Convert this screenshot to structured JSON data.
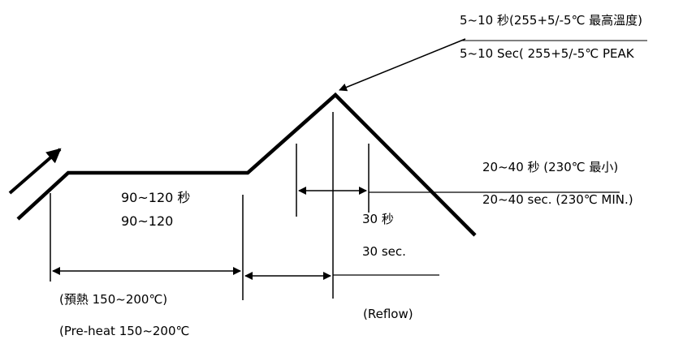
{
  "colors": {
    "line": "#000000",
    "background": "#ffffff"
  },
  "peak": {
    "line1": "5~10 秒(255+5/-5℃ 最高溫度)",
    "line2": "5~10 Sec( 255+5/-5℃ PEAK"
  },
  "above_230": {
    "line1": "20~40 秒 (230℃ 最小)",
    "line2": "20~40 sec. (230℃ MIN.)"
  },
  "soak": {
    "line1": "90~120 秒",
    "line2": "90~120"
  },
  "ramp": {
    "line1": "30 秒",
    "line2": "30 sec."
  },
  "preheat": {
    "line1": "(預熱 150~200℃)",
    "line2": "(Pre-heat 150~200℃"
  },
  "reflow": {
    "label": "(Reflow)"
  }
}
